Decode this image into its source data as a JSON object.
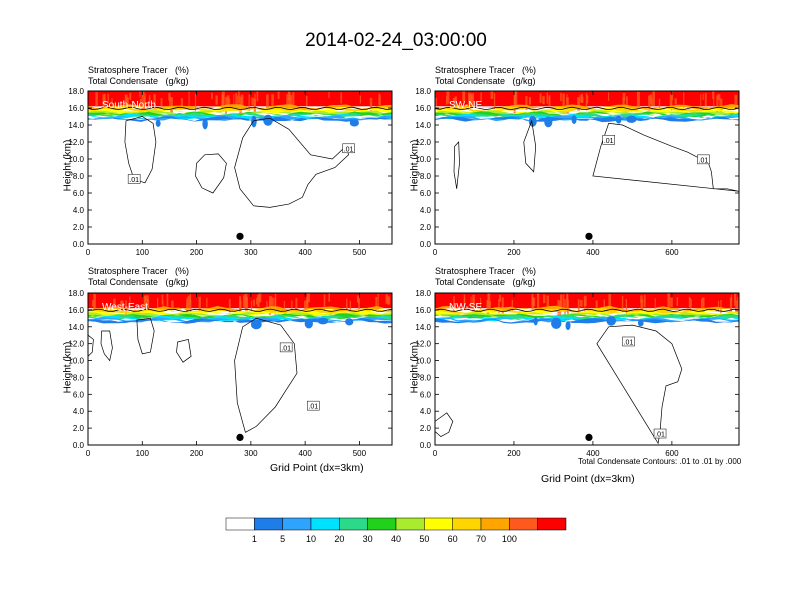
{
  "figure_title": "2014-02-24_03:00:00",
  "subtitle_line1": "Stratosphere Tracer   (%)",
  "subtitle_line2": "Total Condensate   (g/kg)",
  "ylabel": "Height (km)",
  "xlabel": "Grid Point (dx=3km)",
  "footnote": "Total Condensate Contours: .01 to .01 by .000",
  "colors": [
    "#ffffff",
    "#1e7de8",
    "#2fa4ff",
    "#00e1ff",
    "#2ad98a",
    "#22d21a",
    "#a8ec2d",
    "#ffff00",
    "#ffd500",
    "#ffa500",
    "#ff5a1e",
    "#ff0000"
  ],
  "colorbar_labels": [
    "1",
    "5",
    "10",
    "20",
    "30",
    "40",
    "50",
    "60",
    "70",
    "100"
  ],
  "chart_data": [
    {
      "type": "contour",
      "panel_label": "South-North",
      "xlim": [
        0,
        560
      ],
      "xticks": [
        0,
        100,
        200,
        300,
        400,
        500
      ],
      "ylim": [
        0,
        18
      ],
      "yticks": [
        "0.0",
        "2.0",
        "4.0",
        "6.0",
        "8.0",
        "10.0",
        "12.0",
        "14.0",
        "16.0",
        "18.0"
      ],
      "marker_x": 280,
      "contour_labels": [
        {
          "text": ".01",
          "x": 85,
          "y": 7.6
        },
        {
          "text": ".01",
          "x": 480,
          "y": 11.2
        }
      ],
      "contours": [
        [
          [
            70,
            14.5
          ],
          [
            100,
            15.0
          ],
          [
            120,
            14.2
          ],
          [
            125,
            12
          ],
          [
            118,
            8.8
          ],
          [
            105,
            7.2
          ],
          [
            85,
            7.6
          ],
          [
            75,
            9.5
          ],
          [
            68,
            12
          ]
        ],
        [
          [
            200,
            9.5
          ],
          [
            215,
            10.5
          ],
          [
            240,
            10.6
          ],
          [
            255,
            9.5
          ],
          [
            250,
            7.8
          ],
          [
            230,
            6.0
          ],
          [
            210,
            6.6
          ],
          [
            198,
            8
          ]
        ],
        [
          [
            270,
            9
          ],
          [
            285,
            12.5
          ],
          [
            305,
            14.5
          ],
          [
            335,
            14.8
          ],
          [
            370,
            13.5
          ],
          [
            410,
            10.5
          ],
          [
            450,
            10.0
          ],
          [
            475,
            11.5
          ],
          [
            480,
            10.5
          ],
          [
            455,
            9
          ],
          [
            420,
            8.2
          ],
          [
            405,
            7.0
          ],
          [
            395,
            5.5
          ],
          [
            370,
            4.7
          ],
          [
            335,
            4.3
          ],
          [
            305,
            4.5
          ],
          [
            280,
            6.5
          ]
        ]
      ]
    },
    {
      "type": "contour",
      "panel_label": "SW-NE",
      "xlim": [
        0,
        770
      ],
      "xticks": [
        0,
        200,
        400,
        600
      ],
      "ylim": [
        0,
        18
      ],
      "yticks": [
        "0.0",
        "2.0",
        "4.0",
        "6.0",
        "8.0",
        "10.0",
        "12.0",
        "14.0",
        "16.0",
        "18.0"
      ],
      "marker_x": 390,
      "contour_labels": [
        {
          "text": ".01",
          "x": 440,
          "y": 12.2
        },
        {
          "text": ".01",
          "x": 680,
          "y": 9.9
        }
      ],
      "contours": [
        [
          [
            50,
            11.5
          ],
          [
            60,
            12
          ],
          [
            62,
            9.5
          ],
          [
            55,
            6.5
          ],
          [
            48,
            8.5
          ]
        ],
        [
          [
            225,
            12
          ],
          [
            245,
            14.5
          ],
          [
            255,
            11.5
          ],
          [
            250,
            8.5
          ],
          [
            230,
            9.5
          ]
        ],
        [
          [
            400,
            8
          ],
          [
            420,
            11.5
          ],
          [
            440,
            14.2
          ],
          [
            475,
            14.0
          ],
          [
            530,
            12.8
          ],
          [
            600,
            11.5
          ],
          [
            640,
            10.8
          ],
          [
            665,
            10.2
          ],
          [
            690,
            9.9
          ],
          [
            700,
            8.5
          ],
          [
            705,
            6.5
          ],
          [
            740,
            6.5
          ],
          [
            770,
            6.2
          ]
        ]
      ]
    },
    {
      "type": "contour",
      "panel_label": "West-East",
      "xlim": [
        0,
        560
      ],
      "xticks": [
        0,
        100,
        200,
        300,
        400,
        500
      ],
      "ylim": [
        0,
        18
      ],
      "yticks": [
        "0.0",
        "2.0",
        "4.0",
        "6.0",
        "8.0",
        "10.0",
        "12.0",
        "14.0",
        "16.0",
        "18.0"
      ],
      "marker_x": 280,
      "contour_labels": [
        {
          "text": ".01",
          "x": 365,
          "y": 11.5
        },
        {
          "text": ".01",
          "x": 415,
          "y": 4.6
        }
      ],
      "contours": [
        [
          [
            0,
            13
          ],
          [
            10,
            12.5
          ],
          [
            8,
            11
          ],
          [
            0,
            10.5
          ]
        ],
        [
          [
            25,
            13.5
          ],
          [
            40,
            13.5
          ],
          [
            45,
            11.5
          ],
          [
            40,
            10
          ],
          [
            30,
            10.8
          ],
          [
            24,
            12
          ]
        ],
        [
          [
            90,
            14.8
          ],
          [
            115,
            15.0
          ],
          [
            122,
            13.5
          ],
          [
            115,
            11.0
          ],
          [
            100,
            10.8
          ],
          [
            92,
            12.5
          ]
        ],
        [
          [
            165,
            12.2
          ],
          [
            185,
            12.5
          ],
          [
            190,
            10.5
          ],
          [
            175,
            9.8
          ],
          [
            163,
            11
          ]
        ],
        [
          [
            270,
            10
          ],
          [
            285,
            14.0
          ],
          [
            310,
            15.0
          ],
          [
            355,
            14.2
          ],
          [
            380,
            12.0
          ],
          [
            385,
            8.5
          ],
          [
            365,
            6.5
          ],
          [
            345,
            4.5
          ],
          [
            310,
            2.2
          ],
          [
            290,
            1.5
          ],
          [
            275,
            5
          ]
        ]
      ]
    },
    {
      "type": "contour",
      "panel_label": "NW-SE",
      "xlim": [
        0,
        770
      ],
      "xticks": [
        0,
        200,
        400,
        600
      ],
      "ylim": [
        0,
        18
      ],
      "yticks": [
        "0.0",
        "2.0",
        "4.0",
        "6.0",
        "8.0",
        "10.0",
        "12.0",
        "14.0",
        "16.0",
        "18.0"
      ],
      "marker_x": 390,
      "contour_labels": [
        {
          "text": ".01",
          "x": 490,
          "y": 12.2
        },
        {
          "text": ".01",
          "x": 570,
          "y": 1.3
        }
      ],
      "contours": [
        [
          [
            0,
            2.8
          ],
          [
            30,
            3.8
          ],
          [
            45,
            2.8
          ],
          [
            35,
            1.5
          ],
          [
            15,
            1.0
          ],
          [
            0,
            1.6
          ]
        ],
        [
          [
            410,
            12
          ],
          [
            440,
            14.0
          ],
          [
            500,
            14.2
          ],
          [
            560,
            13.5
          ],
          [
            600,
            12.0
          ],
          [
            625,
            9.0
          ],
          [
            615,
            7.5
          ],
          [
            585,
            7.0
          ],
          [
            575,
            4.5
          ],
          [
            570,
            1.5
          ],
          [
            565,
            0.2
          ]
        ]
      ]
    }
  ]
}
